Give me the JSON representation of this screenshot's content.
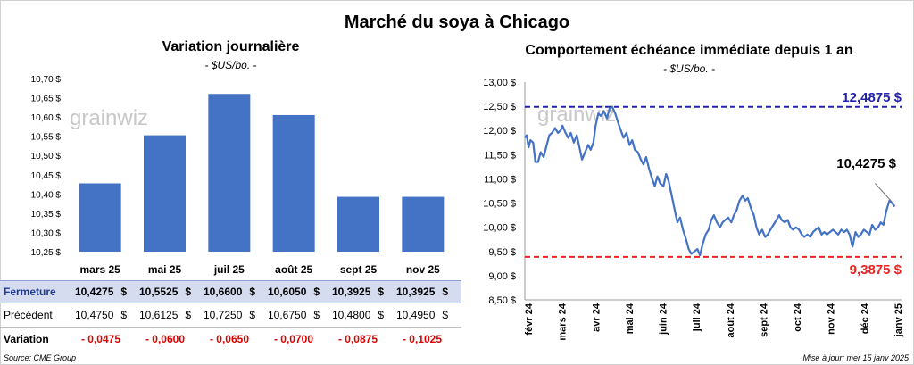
{
  "title": "Marché du soya à Chicago",
  "left_panel": {
    "title": "Variation journalière",
    "subtitle": "- $US/bo. -"
  },
  "right_panel": {
    "title": "Comportement échéance immédiate depuis 1 an",
    "subtitle": "- $US/bo. -"
  },
  "watermark": "grainwiz",
  "colors": {
    "bar": "#4472c4",
    "line": "#4472c4",
    "high": "#2222aa",
    "low": "#ee2222"
  },
  "chart_data": [
    {
      "type": "bar",
      "categories": [
        "mars 25",
        "mai 25",
        "juil 25",
        "août 25",
        "sept 25",
        "nov 25"
      ],
      "values": [
        10.4275,
        10.5525,
        10.66,
        10.605,
        10.3925,
        10.3925
      ],
      "ylim": [
        10.25,
        10.7
      ],
      "yticks": [
        "10,25 $",
        "10,30 $",
        "10,35 $",
        "10,40 $",
        "10,45 $",
        "10,50 $",
        "10,55 $",
        "10,60 $",
        "10,65 $",
        "10,70 $"
      ],
      "grid": false
    },
    {
      "type": "line",
      "ylim": [
        8.5,
        13.0
      ],
      "yticks": [
        "8,50 $",
        "9,00 $",
        "9,50 $",
        "10,00 $",
        "10,50 $",
        "11,00 $",
        "11,50 $",
        "12,00 $",
        "12,50 $",
        "13,00 $"
      ],
      "xticks": [
        "févr 24",
        "mars 24",
        "avr 24",
        "mai 24",
        "juin 24",
        "juil 24",
        "août 24",
        "sept 24",
        "oct 24",
        "nov 24",
        "déc 24",
        "janv 25"
      ],
      "grid": false,
      "high_line": {
        "value": 12.4875,
        "label": "12,4875 $"
      },
      "low_line": {
        "value": 9.3875,
        "label": "9,3875 $"
      },
      "last_label": "10,4275 $",
      "series": [
        {
          "x": 0.0,
          "y": 11.85
        },
        {
          "x": 0.05,
          "y": 11.9
        },
        {
          "x": 0.1,
          "y": 11.65
        },
        {
          "x": 0.15,
          "y": 11.8
        },
        {
          "x": 0.22,
          "y": 11.75
        },
        {
          "x": 0.28,
          "y": 11.35
        },
        {
          "x": 0.35,
          "y": 11.35
        },
        {
          "x": 0.42,
          "y": 11.55
        },
        {
          "x": 0.5,
          "y": 11.45
        },
        {
          "x": 0.58,
          "y": 11.7
        },
        {
          "x": 0.65,
          "y": 11.9
        },
        {
          "x": 0.72,
          "y": 11.95
        },
        {
          "x": 0.8,
          "y": 12.05
        },
        {
          "x": 0.88,
          "y": 11.95
        },
        {
          "x": 0.95,
          "y": 12.0
        },
        {
          "x": 1.0,
          "y": 12.1
        },
        {
          "x": 1.08,
          "y": 11.95
        },
        {
          "x": 1.15,
          "y": 11.85
        },
        {
          "x": 1.22,
          "y": 11.95
        },
        {
          "x": 1.3,
          "y": 11.75
        },
        {
          "x": 1.38,
          "y": 11.9
        },
        {
          "x": 1.45,
          "y": 11.65
        },
        {
          "x": 1.52,
          "y": 11.4
        },
        {
          "x": 1.6,
          "y": 11.55
        },
        {
          "x": 1.68,
          "y": 11.7
        },
        {
          "x": 1.75,
          "y": 11.6
        },
        {
          "x": 1.82,
          "y": 11.75
        },
        {
          "x": 1.88,
          "y": 12.1
        },
        {
          "x": 1.95,
          "y": 12.35
        },
        {
          "x": 2.02,
          "y": 12.3
        },
        {
          "x": 2.1,
          "y": 12.4
        },
        {
          "x": 2.18,
          "y": 12.25
        },
        {
          "x": 2.25,
          "y": 12.45
        },
        {
          "x": 2.32,
          "y": 12.49
        },
        {
          "x": 2.4,
          "y": 12.35
        },
        {
          "x": 2.48,
          "y": 12.15
        },
        {
          "x": 2.55,
          "y": 12.0
        },
        {
          "x": 2.62,
          "y": 11.85
        },
        {
          "x": 2.7,
          "y": 11.95
        },
        {
          "x": 2.78,
          "y": 11.7
        },
        {
          "x": 2.85,
          "y": 11.8
        },
        {
          "x": 2.92,
          "y": 11.6
        },
        {
          "x": 3.0,
          "y": 11.55
        },
        {
          "x": 3.08,
          "y": 11.4
        },
        {
          "x": 3.15,
          "y": 11.3
        },
        {
          "x": 3.22,
          "y": 11.45
        },
        {
          "x": 3.3,
          "y": 11.2
        },
        {
          "x": 3.38,
          "y": 11.0
        },
        {
          "x": 3.45,
          "y": 10.85
        },
        {
          "x": 3.52,
          "y": 11.05
        },
        {
          "x": 3.6,
          "y": 10.9
        },
        {
          "x": 3.68,
          "y": 10.85
        },
        {
          "x": 3.75,
          "y": 11.1
        },
        {
          "x": 3.82,
          "y": 10.95
        },
        {
          "x": 3.9,
          "y": 10.65
        },
        {
          "x": 3.98,
          "y": 10.35
        },
        {
          "x": 4.05,
          "y": 10.1
        },
        {
          "x": 4.12,
          "y": 10.2
        },
        {
          "x": 4.2,
          "y": 9.95
        },
        {
          "x": 4.28,
          "y": 9.75
        },
        {
          "x": 4.35,
          "y": 9.55
        },
        {
          "x": 4.42,
          "y": 9.45
        },
        {
          "x": 4.5,
          "y": 9.5
        },
        {
          "x": 4.58,
          "y": 9.55
        },
        {
          "x": 4.65,
          "y": 9.42
        },
        {
          "x": 4.72,
          "y": 9.65
        },
        {
          "x": 4.8,
          "y": 9.85
        },
        {
          "x": 4.88,
          "y": 9.95
        },
        {
          "x": 4.95,
          "y": 10.15
        },
        {
          "x": 5.02,
          "y": 10.25
        },
        {
          "x": 5.1,
          "y": 10.1
        },
        {
          "x": 5.18,
          "y": 10.0
        },
        {
          "x": 5.25,
          "y": 10.1
        },
        {
          "x": 5.32,
          "y": 10.15
        },
        {
          "x": 5.4,
          "y": 10.2
        },
        {
          "x": 5.48,
          "y": 10.1
        },
        {
          "x": 5.55,
          "y": 10.25
        },
        {
          "x": 5.62,
          "y": 10.35
        },
        {
          "x": 5.7,
          "y": 10.55
        },
        {
          "x": 5.78,
          "y": 10.65
        },
        {
          "x": 5.85,
          "y": 10.55
        },
        {
          "x": 5.92,
          "y": 10.6
        },
        {
          "x": 6.0,
          "y": 10.4
        },
        {
          "x": 6.08,
          "y": 10.25
        },
        {
          "x": 6.15,
          "y": 10.0
        },
        {
          "x": 6.22,
          "y": 9.85
        },
        {
          "x": 6.3,
          "y": 9.95
        },
        {
          "x": 6.38,
          "y": 9.8
        },
        {
          "x": 6.45,
          "y": 9.85
        },
        {
          "x": 6.52,
          "y": 9.95
        },
        {
          "x": 6.6,
          "y": 10.05
        },
        {
          "x": 6.68,
          "y": 10.15
        },
        {
          "x": 6.75,
          "y": 10.25
        },
        {
          "x": 6.82,
          "y": 10.15
        },
        {
          "x": 6.9,
          "y": 10.1
        },
        {
          "x": 6.98,
          "y": 10.15
        },
        {
          "x": 7.05,
          "y": 10.0
        },
        {
          "x": 7.12,
          "y": 9.95
        },
        {
          "x": 7.2,
          "y": 10.0
        },
        {
          "x": 7.28,
          "y": 9.95
        },
        {
          "x": 7.35,
          "y": 9.85
        },
        {
          "x": 7.42,
          "y": 9.8
        },
        {
          "x": 7.5,
          "y": 9.85
        },
        {
          "x": 7.58,
          "y": 9.8
        },
        {
          "x": 7.65,
          "y": 9.9
        },
        {
          "x": 7.72,
          "y": 9.95
        },
        {
          "x": 7.8,
          "y": 10.0
        },
        {
          "x": 7.88,
          "y": 9.85
        },
        {
          "x": 7.95,
          "y": 9.9
        },
        {
          "x": 8.02,
          "y": 9.85
        },
        {
          "x": 8.1,
          "y": 9.9
        },
        {
          "x": 8.18,
          "y": 9.95
        },
        {
          "x": 8.25,
          "y": 9.9
        },
        {
          "x": 8.32,
          "y": 9.85
        },
        {
          "x": 8.4,
          "y": 9.95
        },
        {
          "x": 8.48,
          "y": 9.9
        },
        {
          "x": 8.55,
          "y": 9.95
        },
        {
          "x": 8.62,
          "y": 9.85
        },
        {
          "x": 8.7,
          "y": 9.6
        },
        {
          "x": 8.78,
          "y": 9.9
        },
        {
          "x": 8.85,
          "y": 9.8
        },
        {
          "x": 8.92,
          "y": 9.85
        },
        {
          "x": 9.0,
          "y": 9.95
        },
        {
          "x": 9.08,
          "y": 9.9
        },
        {
          "x": 9.15,
          "y": 9.85
        },
        {
          "x": 9.22,
          "y": 10.05
        },
        {
          "x": 9.3,
          "y": 9.95
        },
        {
          "x": 9.38,
          "y": 10.0
        },
        {
          "x": 9.45,
          "y": 10.1
        },
        {
          "x": 9.52,
          "y": 10.05
        },
        {
          "x": 9.6,
          "y": 10.35
        },
        {
          "x": 9.68,
          "y": 10.55
        },
        {
          "x": 9.75,
          "y": 10.5
        },
        {
          "x": 9.82,
          "y": 10.4275
        }
      ]
    }
  ],
  "table": {
    "rows": [
      {
        "label": "Fermeture",
        "values": [
          "10,4275",
          "10,5525",
          "10,6600",
          "10,6050",
          "10,3925",
          "10,3925"
        ],
        "unit": "$"
      },
      {
        "label": "Précédent",
        "values": [
          "10,4750",
          "10,6125",
          "10,7250",
          "10,6750",
          "10,4800",
          "10,4950"
        ],
        "unit": "$"
      },
      {
        "label": "Variation",
        "values": [
          "- 0,0475",
          "- 0,0600",
          "- 0,0650",
          "- 0,0700",
          "- 0,0875",
          "- 0,1025"
        ],
        "unit": ""
      }
    ]
  },
  "footer": {
    "source": "Source: CME Group",
    "updated": "Mise à jour: mer 15 janv 2025"
  }
}
